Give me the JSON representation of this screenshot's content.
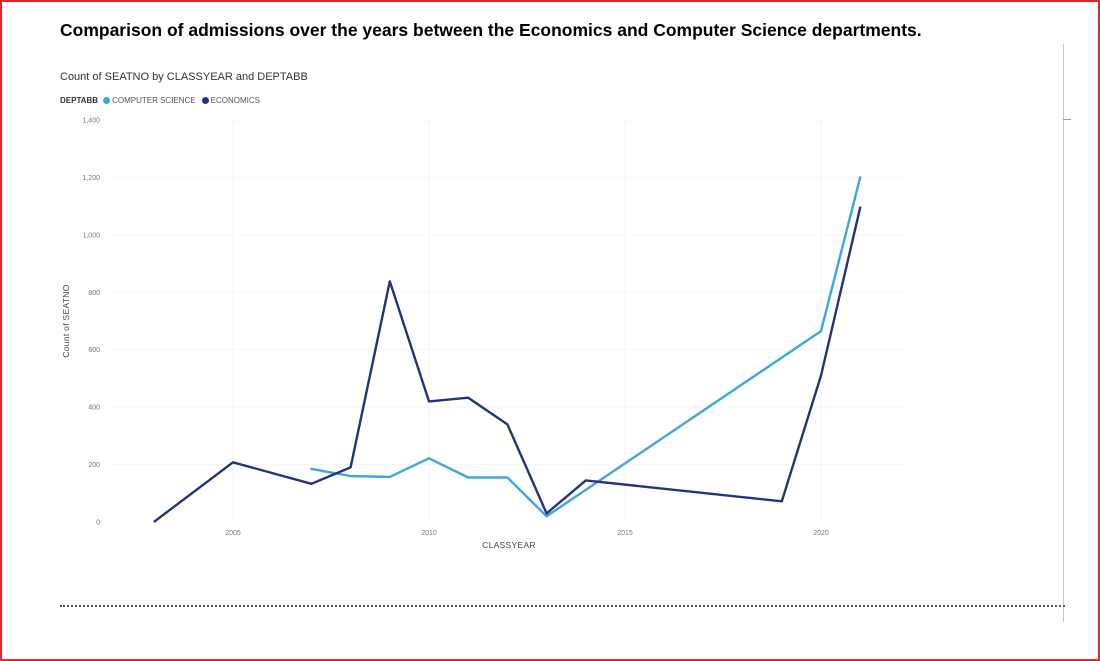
{
  "document": {
    "title": "Comparison of admissions over the years between the Economics and Computer Science departments."
  },
  "chart_data": {
    "type": "line",
    "title": "Count of SEATNO by CLASSYEAR and DEPTABB",
    "xlabel": "CLASSYEAR",
    "ylabel": "Count of SEATNO",
    "legend_title": "DEPTABB",
    "legend_position": "top-left",
    "xlim": [
      2003,
      2021
    ],
    "ylim": [
      0,
      1400
    ],
    "x_ticks": [
      2005,
      2010,
      2015,
      2020
    ],
    "y_ticks": [
      0,
      200,
      400,
      600,
      800,
      1000,
      1200,
      1400
    ],
    "grid": true,
    "series": [
      {
        "name": "COMPUTER SCIENCE",
        "color": "#3fa7e0",
        "x": [
          2007,
          2008,
          2009,
          2010,
          2011,
          2012,
          2013,
          2020,
          2021
        ],
        "y": [
          185,
          160,
          157,
          222,
          155,
          155,
          20,
          665,
          1200
        ]
      },
      {
        "name": "ECONOMICS",
        "color": "#24337a",
        "x": [
          2003,
          2005,
          2007,
          2008,
          2009,
          2010,
          2011,
          2012,
          2013,
          2014,
          2019,
          2020,
          2021
        ],
        "y": [
          2,
          208,
          133,
          190,
          838,
          420,
          433,
          340,
          30,
          145,
          72,
          510,
          1095
        ]
      }
    ]
  }
}
